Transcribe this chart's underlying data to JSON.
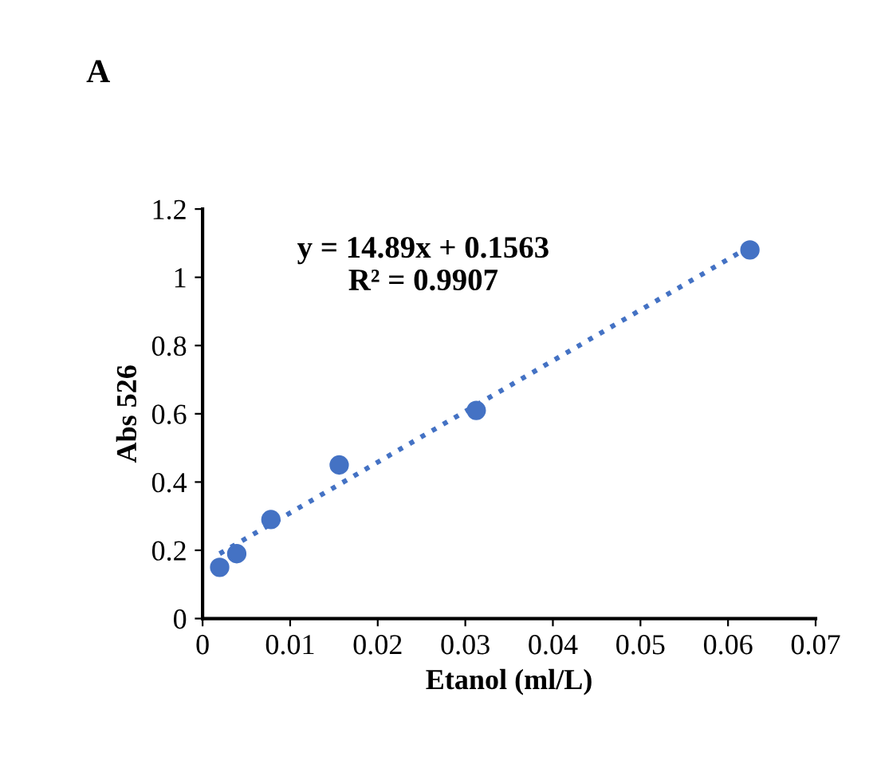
{
  "chart_data": {
    "type": "scatter",
    "title": "A",
    "xlabel": "Etanol (ml/L)",
    "ylabel": "Abs 526",
    "series": [
      {
        "color": "#4472c4",
        "marker": "circle",
        "x": [
          0.00195,
          0.0039,
          0.0078,
          0.0156,
          0.03125,
          0.0625
        ],
        "values": [
          0.15,
          0.19,
          0.29,
          0.45,
          0.61,
          1.08
        ]
      },
      {
        "type": "line",
        "color": "#4472c4",
        "line_style": "dotted",
        "marker": "none",
        "x": [
          0.00195,
          0.0625
        ],
        "values": [
          0.19,
          1.09
        ]
      }
    ],
    "annotations": [
      "y = 14.89x + 0.1563\nR² = 0.9907"
    ],
    "xlim": [
      0,
      0.07
    ],
    "xticks": [
      0,
      0.01,
      0.02,
      0.03,
      0.04,
      0.05,
      0.06,
      0.07
    ],
    "ylim": [
      0,
      1.2
    ],
    "yticks": [
      0,
      0.2,
      0.4,
      0.6,
      0.8,
      1,
      1.2
    ],
    "grid": false,
    "legend": false
  }
}
